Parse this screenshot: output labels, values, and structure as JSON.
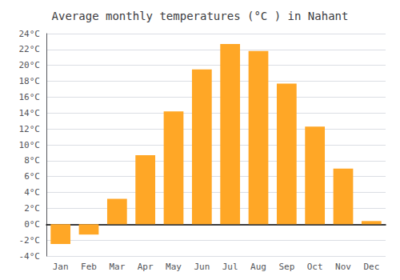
{
  "chart_data": {
    "type": "bar",
    "title": "Average monthly temperatures (°C ) in Nahant",
    "categories": [
      "Jan",
      "Feb",
      "Mar",
      "Apr",
      "May",
      "Jun",
      "Jul",
      "Aug",
      "Sep",
      "Oct",
      "Nov",
      "Dec"
    ],
    "values": [
      -2.5,
      -1.3,
      3.2,
      8.7,
      14.2,
      19.5,
      22.7,
      21.8,
      17.7,
      12.3,
      7.0,
      0.4
    ],
    "color": "#FFA726",
    "ylim": [
      -4,
      24
    ],
    "yticks": [
      {
        "value": -4,
        "label": "-4°C"
      },
      {
        "value": -2,
        "label": "-2°C"
      },
      {
        "value": 0,
        "label": "0°C"
      },
      {
        "value": 2,
        "label": "2°C"
      },
      {
        "value": 4,
        "label": "4°C"
      },
      {
        "value": 6,
        "label": "6°C"
      },
      {
        "value": 8,
        "label": "8°C"
      },
      {
        "value": 10,
        "label": "10°C"
      },
      {
        "value": 12,
        "label": "12°C"
      },
      {
        "value": 14,
        "label": "14°C"
      },
      {
        "value": 16,
        "label": "16°C"
      },
      {
        "value": 18,
        "label": "18°C"
      },
      {
        "value": 20,
        "label": "20°C"
      },
      {
        "value": 22,
        "label": "22°C"
      },
      {
        "value": 24,
        "label": "24°C"
      }
    ],
    "grid": true
  }
}
